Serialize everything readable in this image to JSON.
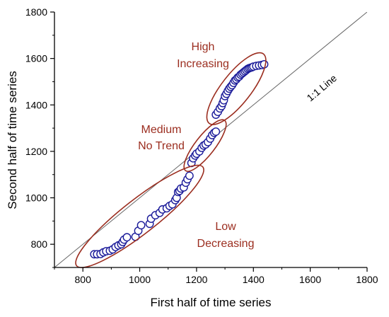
{
  "colors": {
    "marker": "#1a1a99",
    "ellipse": "#9b2d1f",
    "annotation_text": "#9b2d1f",
    "reference_line": "#666666",
    "axis": "#000000"
  },
  "chart_data": {
    "type": "scatter",
    "xlabel": "First half of time series",
    "ylabel": "Second half of time series",
    "xlim": [
      700,
      1800
    ],
    "ylim": [
      700,
      1800
    ],
    "xticks": [
      800,
      1000,
      1200,
      1400,
      1600,
      1800
    ],
    "yticks": [
      800,
      1000,
      1200,
      1400,
      1600,
      1800
    ],
    "grid": false,
    "marker": "open-circle",
    "reference_line": {
      "label": "1:1 Line",
      "from": [
        700,
        700
      ],
      "to": [
        1800,
        1800
      ]
    },
    "points": [
      [
        840,
        757
      ],
      [
        850,
        757
      ],
      [
        862,
        758
      ],
      [
        872,
        765
      ],
      [
        882,
        770
      ],
      [
        895,
        772
      ],
      [
        905,
        778
      ],
      [
        915,
        788
      ],
      [
        925,
        795
      ],
      [
        935,
        800
      ],
      [
        940,
        810
      ],
      [
        945,
        820
      ],
      [
        955,
        830
      ],
      [
        985,
        832
      ],
      [
        995,
        858
      ],
      [
        1005,
        882
      ],
      [
        1035,
        888
      ],
      [
        1040,
        910
      ],
      [
        1055,
        925
      ],
      [
        1070,
        935
      ],
      [
        1080,
        950
      ],
      [
        1095,
        955
      ],
      [
        1105,
        965
      ],
      [
        1115,
        972
      ],
      [
        1125,
        990
      ],
      [
        1130,
        1000
      ],
      [
        1135,
        1025
      ],
      [
        1140,
        1030
      ],
      [
        1145,
        1040
      ],
      [
        1155,
        1045
      ],
      [
        1162,
        1065
      ],
      [
        1168,
        1080
      ],
      [
        1175,
        1095
      ],
      [
        1182,
        1150
      ],
      [
        1188,
        1170
      ],
      [
        1195,
        1182
      ],
      [
        1200,
        1190
      ],
      [
        1210,
        1200
      ],
      [
        1218,
        1215
      ],
      [
        1225,
        1225
      ],
      [
        1232,
        1230
      ],
      [
        1240,
        1240
      ],
      [
        1248,
        1255
      ],
      [
        1255,
        1270
      ],
      [
        1262,
        1280
      ],
      [
        1268,
        1285
      ],
      [
        1268,
        1358
      ],
      [
        1275,
        1370
      ],
      [
        1282,
        1385
      ],
      [
        1288,
        1395
      ],
      [
        1292,
        1408
      ],
      [
        1296,
        1420
      ],
      [
        1300,
        1438
      ],
      [
        1305,
        1448
      ],
      [
        1310,
        1460
      ],
      [
        1315,
        1470
      ],
      [
        1320,
        1478
      ],
      [
        1325,
        1485
      ],
      [
        1330,
        1495
      ],
      [
        1335,
        1505
      ],
      [
        1340,
        1510
      ],
      [
        1345,
        1518
      ],
      [
        1350,
        1522
      ],
      [
        1355,
        1530
      ],
      [
        1360,
        1535
      ],
      [
        1365,
        1540
      ],
      [
        1370,
        1545
      ],
      [
        1375,
        1550
      ],
      [
        1380,
        1555
      ],
      [
        1385,
        1558
      ],
      [
        1390,
        1560
      ],
      [
        1395,
        1562
      ],
      [
        1400,
        1565
      ],
      [
        1410,
        1568
      ],
      [
        1420,
        1570
      ],
      [
        1430,
        1572
      ],
      [
        1438,
        1575
      ]
    ],
    "groups": [
      {
        "line1": "High",
        "line2": "Increasing",
        "ellipse": {
          "cx": 1340,
          "cy": 1470,
          "rx": 155,
          "ry": 52,
          "angle_deg": 52
        }
      },
      {
        "line1": "Medium",
        "line2": "No Trend",
        "ellipse": {
          "cx": 1230,
          "cy": 1225,
          "rx": 112,
          "ry": 34,
          "angle_deg": 52
        }
      },
      {
        "line1": "Low",
        "line2": "Decreasing",
        "ellipse": {
          "cx": 1000,
          "cy": 920,
          "rx": 282,
          "ry": 60,
          "angle_deg": 38
        }
      }
    ]
  }
}
